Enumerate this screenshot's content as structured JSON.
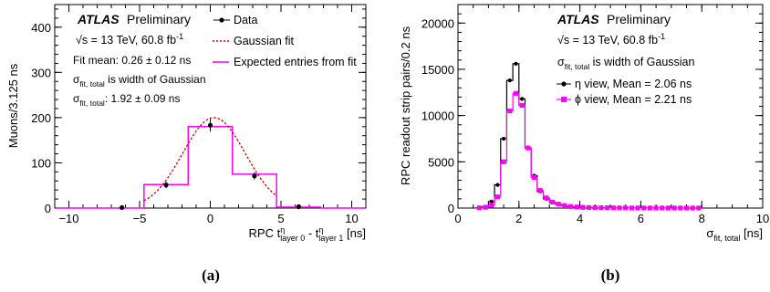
{
  "experiment": "ATLAS",
  "experiment_status": "Preliminary",
  "energy_label": "√s = 13 TeV, 60.8 fb",
  "energy_exp": "-1",
  "panel_labels": [
    "(a)",
    "(b)"
  ],
  "colors": {
    "data": "#000000",
    "gaussian_fit": "#cc0000",
    "expected": "#ff00ff",
    "eta": "#000000",
    "phi": "#ff00ff"
  },
  "chart_data": [
    {
      "type": "histogram",
      "panel": "(a)",
      "xlabel": {
        "pre": "RPC t",
        "sup1": "η",
        "sub1": "layer 0",
        "mid": " - t",
        "sup2": "η",
        "sub2": "layer 1",
        "post": " [ns]"
      },
      "ylabel": "Muons/3.125 ns",
      "xlim": [
        -11,
        11
      ],
      "ylim": [
        0,
        450
      ],
      "xticks": [
        -10,
        -5,
        0,
        5,
        10
      ],
      "yticks": [
        0,
        100,
        200,
        300,
        400
      ],
      "legend": {
        "data": "Data",
        "fit": "Gaussian fit",
        "expected": "Expected entries from fit"
      },
      "annotations": {
        "fit_mean": "Fit mean: 0.26 ± 0.12 ns",
        "sigma_desc": " is width of Gaussian",
        "sigma_val": ": 1.92 ± 0.09 ns",
        "sigma_symbol": "σ",
        "sigma_sub": "fit, total"
      },
      "data_points": [
        {
          "x": -3.125,
          "y": 51,
          "err": 7
        },
        {
          "x": 0.0,
          "y": 183,
          "err": 14
        },
        {
          "x": 3.125,
          "y": 71,
          "err": 8
        },
        {
          "x": 6.25,
          "y": 3,
          "err": 2
        },
        {
          "x": -6.25,
          "y": 1,
          "err": 1
        }
      ],
      "expected_bins": {
        "edges": [
          -10.9375,
          -7.8125,
          -4.6875,
          -1.5625,
          1.5625,
          4.6875,
          7.8125,
          10.9375
        ],
        "values": [
          0,
          0,
          52,
          180,
          75,
          2,
          0
        ]
      },
      "gaussian_fit": {
        "mean": 0.26,
        "sigma": 1.92,
        "amplitude": 200
      }
    },
    {
      "type": "histogram",
      "panel": "(b)",
      "xlabel": {
        "pre": "σ",
        "sub": "fit, total",
        "post": " [ns]"
      },
      "ylabel": "RPC readout strip pairs/0.2 ns",
      "xlim": [
        0,
        10
      ],
      "ylim": [
        0,
        22000
      ],
      "xticks": [
        0,
        2,
        4,
        6,
        8,
        10
      ],
      "yticks": [
        0,
        5000,
        10000,
        15000,
        20000
      ],
      "annotations": {
        "sigma_symbol": "σ",
        "sigma_sub": "fit, total",
        "sigma_desc": " is width of Gaussian"
      },
      "series": [
        {
          "name": "η view, Mean = 2.06 ns",
          "bin_width": 0.2,
          "bins_start": 0.6,
          "values": [
            40,
            140,
            700,
            2500,
            7500,
            13800,
            15600,
            11800,
            6500,
            3500,
            1800,
            1000,
            600,
            380,
            240,
            150,
            100,
            70,
            50,
            40,
            30,
            25,
            20,
            15,
            12,
            10,
            10,
            8,
            8,
            6,
            6,
            5,
            5,
            4,
            4,
            3,
            3
          ]
        },
        {
          "name": "ϕ view, Mean = 2.21 ns",
          "bin_width": 0.2,
          "bins_start": 0.6,
          "values": [
            20,
            80,
            300,
            1200,
            5000,
            10500,
            12400,
            11100,
            6500,
            3300,
            1900,
            1100,
            650,
            420,
            270,
            170,
            110,
            80,
            55,
            42,
            32,
            26,
            20,
            15,
            12,
            10,
            9,
            8,
            7,
            6,
            6,
            5,
            4,
            4,
            3,
            3,
            2
          ]
        }
      ]
    }
  ]
}
